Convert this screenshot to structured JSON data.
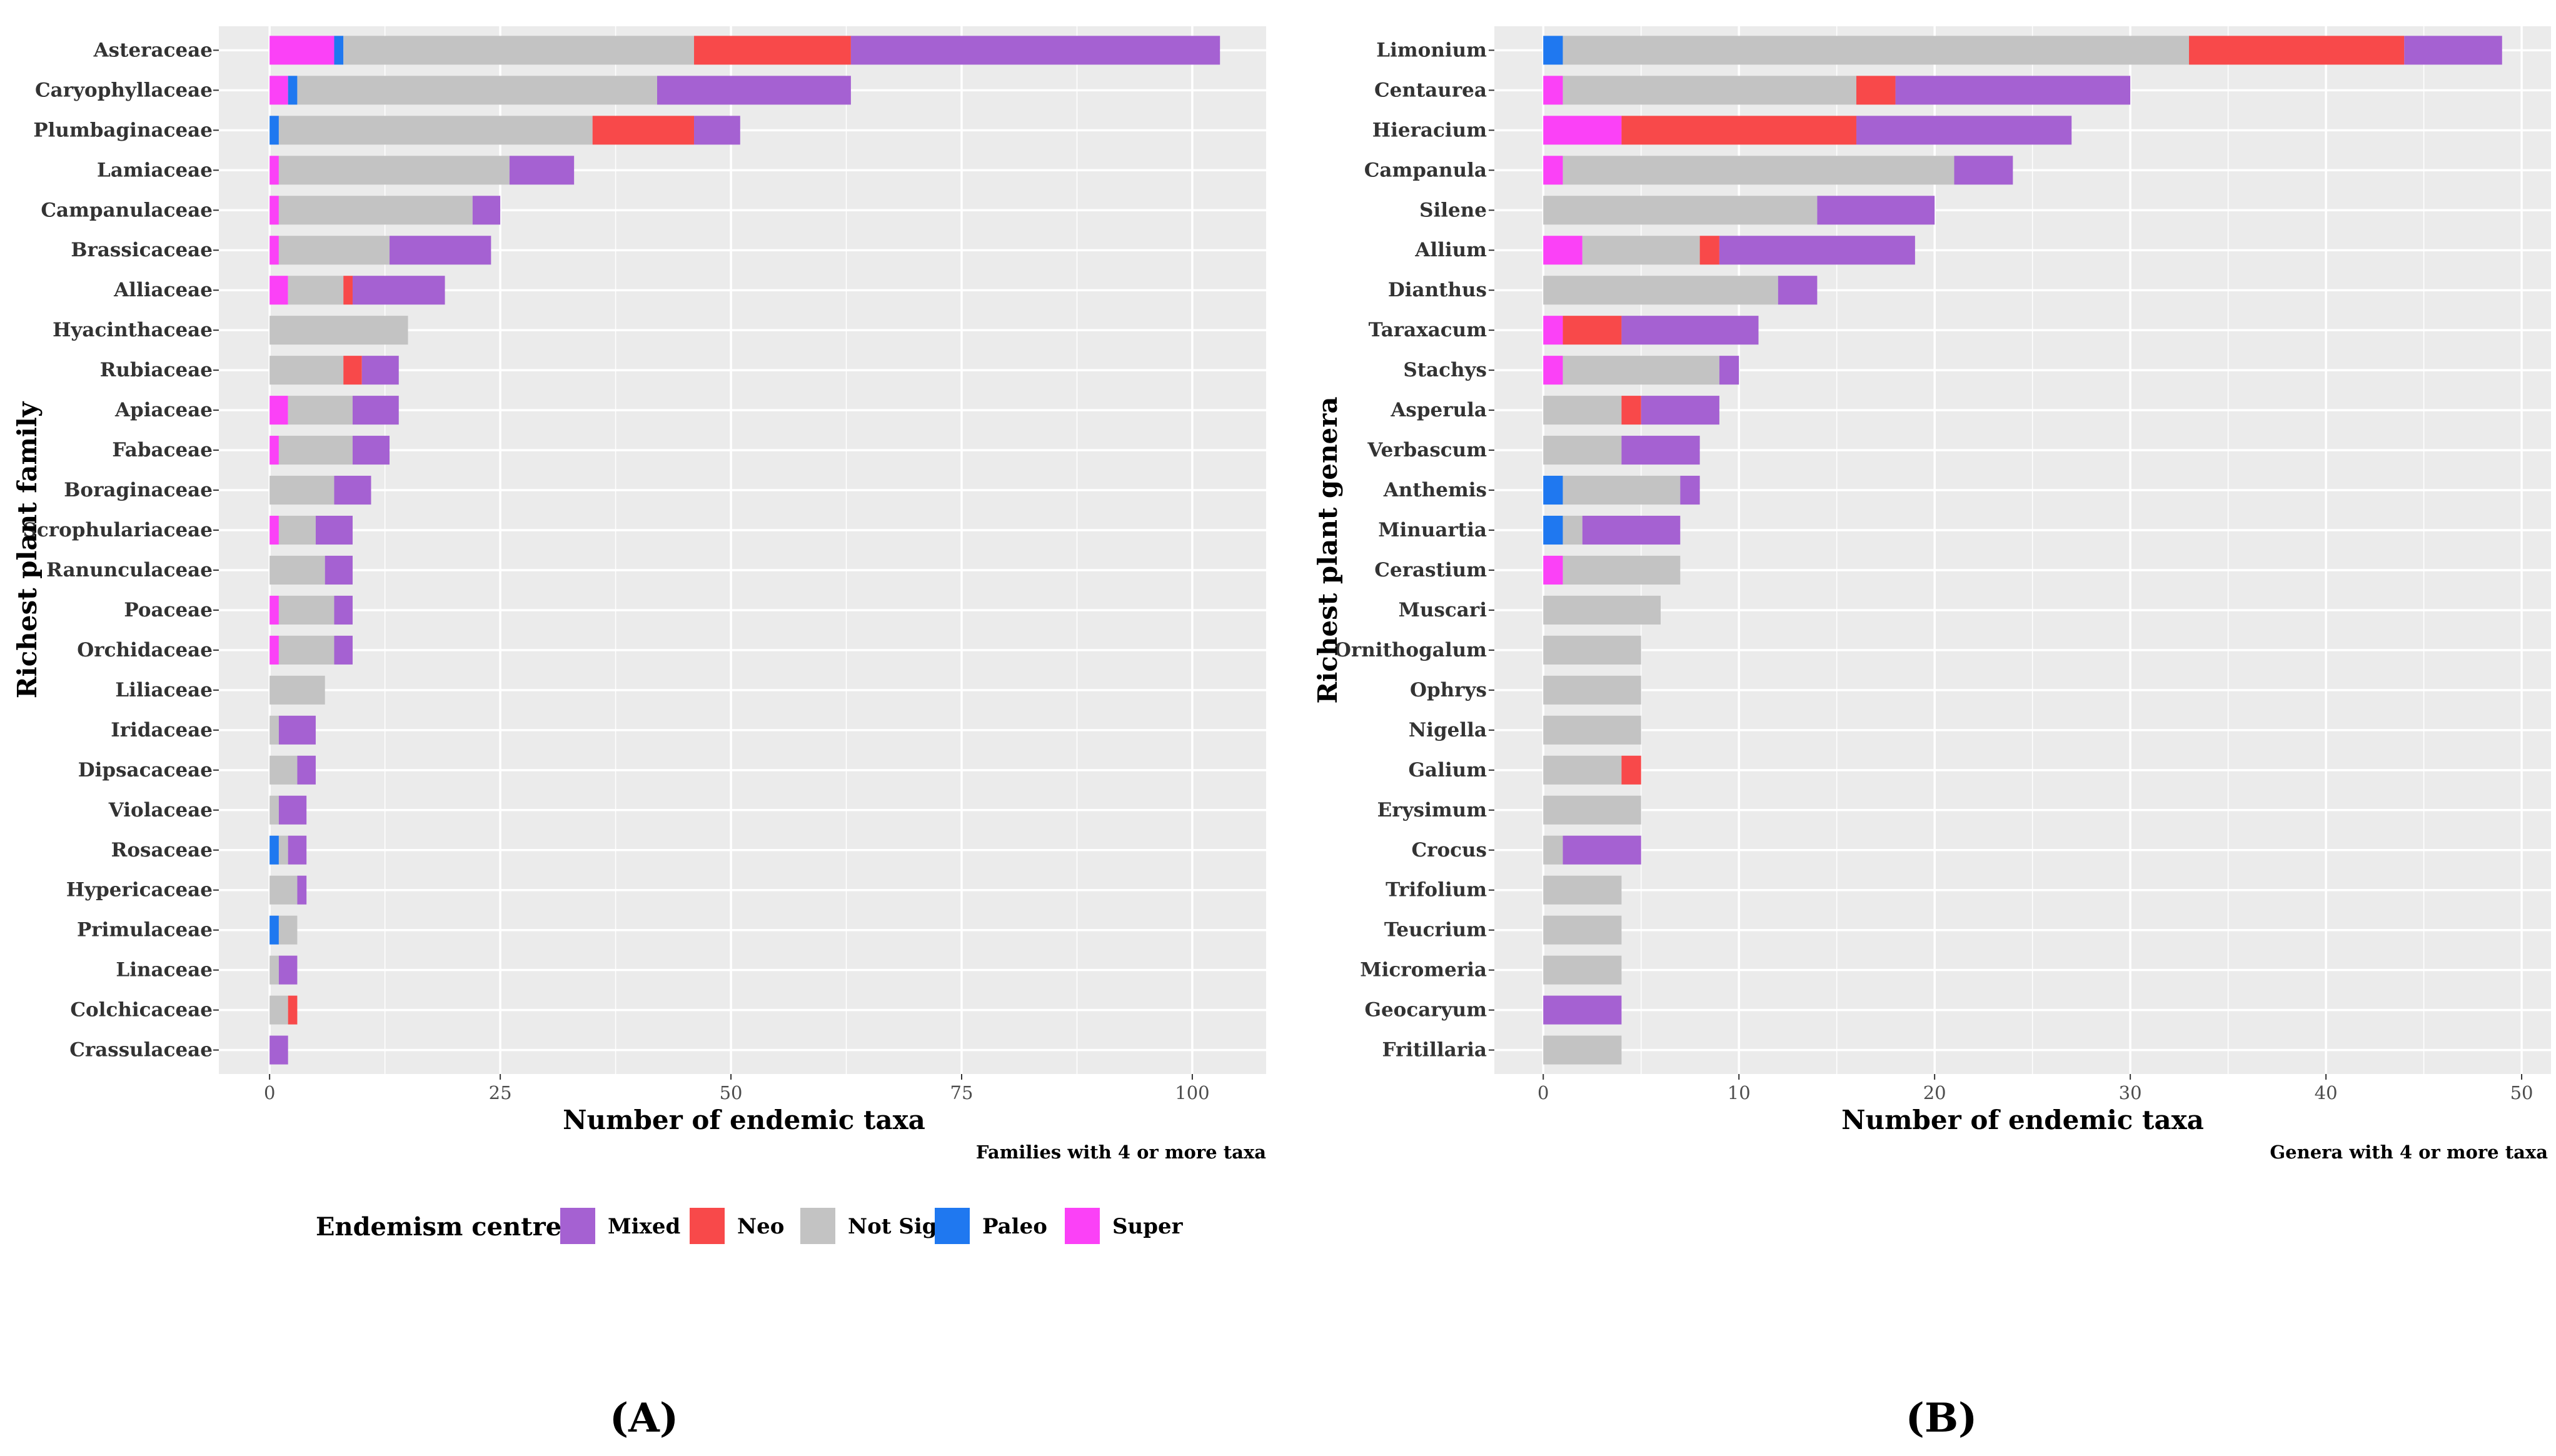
{
  "colors": {
    "Mixed": "#a561d2",
    "Neo": "#f8494a",
    "Not Sig": "#c3c3c3",
    "Paleo": "#1f78f0",
    "Super": "#fb41f7",
    "panel_bg": "#ebebeb",
    "grid": "#ffffff"
  },
  "legend": {
    "title": "Endemism centres",
    "items": [
      "Mixed",
      "Neo",
      "Not Sig",
      "Paleo",
      "Super"
    ]
  },
  "panel_labels": [
    "(A)",
    "(B)"
  ],
  "chart_data": [
    {
      "type": "bar",
      "orientation": "horizontal",
      "stacked": true,
      "title": "",
      "xlabel": "Number of endemic taxa",
      "ylabel": "Richest plant family",
      "caption": "Families with 4 or more taxa",
      "xlim": [
        -5.5,
        108
      ],
      "xticks": [
        0,
        25,
        50,
        75,
        100
      ],
      "categories": [
        "Asteraceae",
        "Caryophyllaceae",
        "Plumbaginaceae",
        "Lamiaceae",
        "Campanulaceae",
        "Brassicaceae",
        "Alliaceae",
        "Hyacinthaceae",
        "Rubiaceae",
        "Apiaceae",
        "Fabaceae",
        "Boraginaceae",
        "Scrophulariaceae",
        "Ranunculaceae",
        "Poaceae",
        "Orchidaceae",
        "Liliaceae",
        "Iridaceae",
        "Dipsacaceae",
        "Violaceae",
        "Rosaceae",
        "Hypericaceae",
        "Primulaceae",
        "Linaceae",
        "Colchicaceae",
        "Crassulaceae"
      ],
      "series": [
        {
          "name": "Super",
          "values": [
            7,
            2,
            0,
            1,
            1,
            1,
            2,
            0,
            0,
            2,
            1,
            0,
            1,
            0,
            1,
            1,
            0,
            0,
            0,
            0,
            0,
            0,
            0,
            0,
            0,
            0
          ]
        },
        {
          "name": "Paleo",
          "values": [
            1,
            1,
            1,
            0,
            0,
            0,
            0,
            0,
            0,
            0,
            0,
            0,
            0,
            0,
            0,
            0,
            0,
            0,
            0,
            0,
            1,
            0,
            1,
            0,
            0,
            0
          ]
        },
        {
          "name": "Not Sig",
          "values": [
            38,
            39,
            34,
            25,
            21,
            12,
            6,
            15,
            8,
            7,
            8,
            7,
            4,
            6,
            6,
            6,
            6,
            1,
            3,
            1,
            1,
            3,
            2,
            1,
            2,
            0
          ]
        },
        {
          "name": "Neo",
          "values": [
            17,
            0,
            11,
            0,
            0,
            0,
            1,
            0,
            2,
            0,
            0,
            0,
            0,
            0,
            0,
            0,
            0,
            0,
            0,
            0,
            0,
            0,
            0,
            0,
            1,
            0
          ]
        },
        {
          "name": "Mixed",
          "values": [
            40,
            21,
            5,
            7,
            3,
            11,
            10,
            0,
            4,
            5,
            4,
            4,
            4,
            3,
            2,
            2,
            0,
            4,
            2,
            3,
            2,
            1,
            0,
            2,
            0,
            2
          ]
        }
      ]
    },
    {
      "type": "bar",
      "orientation": "horizontal",
      "stacked": true,
      "title": "",
      "xlabel": "Number of endemic taxa",
      "ylabel": "Richest plant genera",
      "caption": "Genera with 4 or more taxa",
      "xlim": [
        -2.5,
        51.5
      ],
      "xticks": [
        0,
        10,
        20,
        30,
        40,
        50
      ],
      "categories": [
        "Limonium",
        "Centaurea",
        "Hieracium",
        "Campanula",
        "Silene",
        "Allium",
        "Dianthus",
        "Taraxacum",
        "Stachys",
        "Asperula",
        "Verbascum",
        "Anthemis",
        "Minuartia",
        "Cerastium",
        "Muscari",
        "Ornithogalum",
        "Ophrys",
        "Nigella",
        "Galium",
        "Erysimum",
        "Crocus",
        "Trifolium",
        "Teucrium",
        "Micromeria",
        "Geocaryum",
        "Fritillaria"
      ],
      "series": [
        {
          "name": "Super",
          "values": [
            0,
            1,
            4,
            1,
            0,
            2,
            0,
            1,
            1,
            0,
            0,
            0,
            0,
            1,
            0,
            0,
            0,
            0,
            0,
            0,
            0,
            0,
            0,
            0,
            0,
            0
          ]
        },
        {
          "name": "Paleo",
          "values": [
            1,
            0,
            0,
            0,
            0,
            0,
            0,
            0,
            0,
            0,
            0,
            1,
            1,
            0,
            0,
            0,
            0,
            0,
            0,
            0,
            0,
            0,
            0,
            0,
            0,
            0
          ]
        },
        {
          "name": "Not Sig",
          "values": [
            32,
            15,
            0,
            20,
            14,
            6,
            12,
            0,
            8,
            4,
            4,
            6,
            1,
            6,
            6,
            5,
            5,
            5,
            4,
            5,
            1,
            4,
            4,
            4,
            0,
            4
          ]
        },
        {
          "name": "Neo",
          "values": [
            11,
            2,
            12,
            0,
            0,
            1,
            0,
            3,
            0,
            1,
            0,
            0,
            0,
            0,
            0,
            0,
            0,
            0,
            1,
            0,
            0,
            0,
            0,
            0,
            0,
            0
          ]
        },
        {
          "name": "Mixed",
          "values": [
            5,
            12,
            11,
            3,
            6,
            10,
            2,
            7,
            1,
            4,
            4,
            1,
            5,
            0,
            0,
            0,
            0,
            0,
            0,
            0,
            4,
            0,
            0,
            0,
            4,
            0
          ]
        }
      ]
    }
  ]
}
